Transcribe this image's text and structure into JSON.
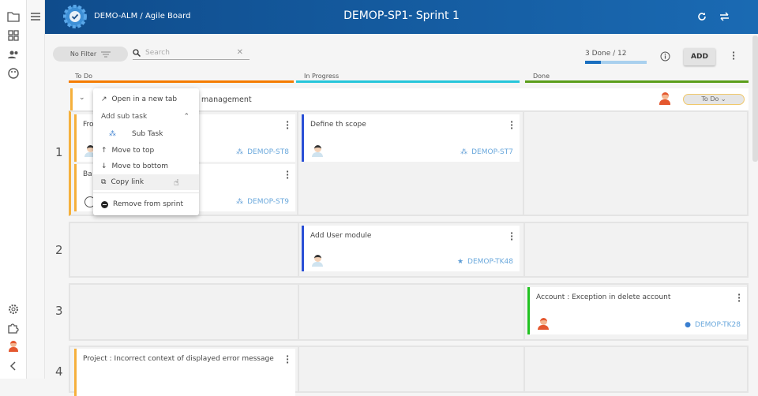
{
  "sidebar": {
    "icons": [
      "folder-icon",
      "dashboard-icon",
      "users-icon",
      "palette-icon",
      "settings-icon",
      "puzzle-icon",
      "avatar",
      "chevron-left-icon"
    ]
  },
  "header": {
    "breadcrumb": "DEMO-ALM / Agile Board",
    "title": "DEMOP-SP1- Sprint 1",
    "icons": [
      "refresh-icon",
      "swap-icon"
    ]
  },
  "toolbar": {
    "filter_label": "No Filter",
    "search_placeholder": "Search",
    "progress_label": "3 Done / 12",
    "progress_done": 3,
    "progress_total": 12,
    "add_label": "ADD"
  },
  "columns": [
    {
      "label": "To Do",
      "color": "#f57c00"
    },
    {
      "label": "In Progress",
      "color": "#26c6da"
    },
    {
      "label": "Done",
      "color": "#5a9e1a"
    }
  ],
  "story": {
    "title_fragment": "management",
    "status": "To Do"
  },
  "rows": [
    "1",
    "2",
    "3",
    "4"
  ],
  "cards": {
    "r1_todo_a": {
      "title": "Fro",
      "id": "DEMOP-ST8"
    },
    "r1_todo_b": {
      "title": "Ba",
      "id": "DEMOP-ST9"
    },
    "r1_prog": {
      "title": "Define th scope",
      "id": "DEMOP-ST7"
    },
    "r2_prog": {
      "title": "Add User module",
      "id": "DEMOP-TK48"
    },
    "r3_done": {
      "title": "Account : Exception in delete account",
      "id": "DEMOP-TK28"
    },
    "r4_todo": {
      "title": "Project : Incorrect context of displayed error message"
    }
  },
  "context_menu": {
    "open_new_tab": "Open in a new tab",
    "add_sub_task": "Add sub task",
    "sub_task": "Sub Task",
    "move_top": "Move to top",
    "move_bottom": "Move to bottom",
    "copy_link": "Copy link",
    "remove": "Remove from sprint"
  }
}
